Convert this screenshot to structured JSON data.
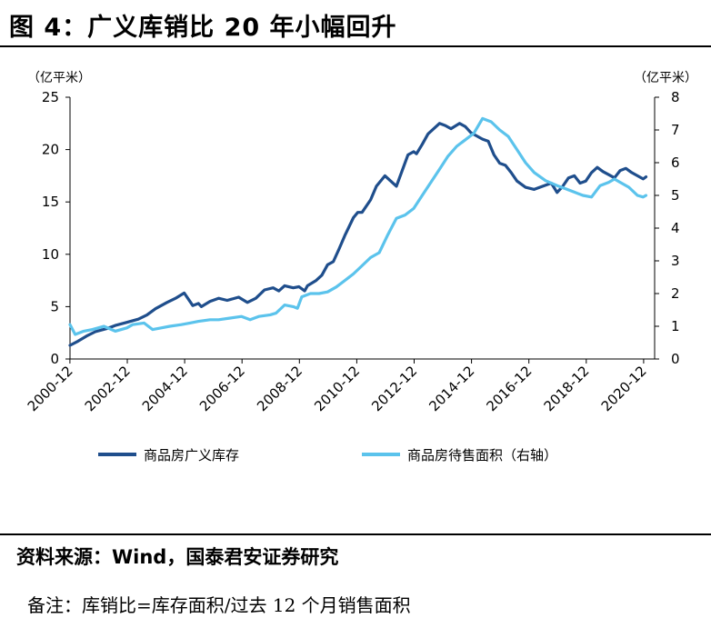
{
  "header": {
    "title": "图 4：广义库销比 20 年小幅回升"
  },
  "footer": {
    "source": "资料来源：Wind，国泰君安证券研究",
    "note": "备注：库销比=库存面积/过去 12 个月销售面积"
  },
  "chart_data": {
    "type": "line",
    "left_unit": "（亿平米）",
    "right_unit": "（亿平米）",
    "x_ticks": [
      "2000-12",
      "2002-12",
      "2004-12",
      "2006-12",
      "2008-12",
      "2010-12",
      "2012-12",
      "2014-12",
      "2016-12",
      "2018-12",
      "2020-12"
    ],
    "y_left_ticks": [
      0,
      5,
      10,
      15,
      20,
      25
    ],
    "y_right_ticks": [
      0,
      1,
      2,
      3,
      4,
      5,
      6,
      7,
      8
    ],
    "ylim_left": [
      0,
      25
    ],
    "ylim_right": [
      0,
      8
    ],
    "xlim": [
      2000.92,
      2021.3
    ],
    "grid": false,
    "legend_position": "bottom",
    "colors": {
      "series1": "#1f4e8c",
      "series2": "#5bc3ec"
    },
    "series": [
      {
        "name": "商品房广义库存",
        "axis": "left",
        "x": [
          2000.92,
          2001.2,
          2001.5,
          2001.8,
          2002.2,
          2002.5,
          2002.9,
          2003.3,
          2003.6,
          2003.9,
          2004.3,
          2004.6,
          2004.9,
          2005.2,
          2005.4,
          2005.5,
          2005.8,
          2006.1,
          2006.4,
          2006.8,
          2007.1,
          2007.4,
          2007.7,
          2008.0,
          2008.2,
          2008.4,
          2008.7,
          2008.9,
          2009.1,
          2009.2,
          2009.5,
          2009.7,
          2009.9,
          2010.1,
          2010.3,
          2010.5,
          2010.8,
          2010.95,
          2011.1,
          2011.4,
          2011.6,
          2011.9,
          2012.1,
          2012.3,
          2012.5,
          2012.7,
          2012.9,
          2013.0,
          2013.2,
          2013.4,
          2013.6,
          2013.8,
          2014.0,
          2014.2,
          2014.5,
          2014.7,
          2014.9,
          2015.1,
          2015.3,
          2015.5,
          2015.7,
          2015.9,
          2016.1,
          2016.3,
          2016.5,
          2016.8,
          2017.1,
          2017.4,
          2017.7,
          2017.9,
          2018.1,
          2018.3,
          2018.5,
          2018.7,
          2018.9,
          2019.1,
          2019.3,
          2019.5,
          2019.7,
          2019.9,
          2020.1,
          2020.3,
          2020.5,
          2020.7,
          2020.9,
          2021.0
        ],
        "values": [
          1.3,
          1.7,
          2.2,
          2.6,
          2.9,
          3.2,
          3.5,
          3.8,
          4.2,
          4.8,
          5.4,
          5.8,
          6.3,
          5.1,
          5.3,
          5.0,
          5.5,
          5.8,
          5.6,
          5.9,
          5.4,
          5.8,
          6.6,
          6.8,
          6.5,
          7.0,
          6.8,
          6.9,
          6.5,
          7.0,
          7.5,
          8.0,
          9.0,
          9.3,
          10.5,
          11.8,
          13.5,
          14.0,
          14.0,
          15.2,
          16.5,
          17.5,
          17.0,
          16.5,
          18.0,
          19.5,
          19.8,
          19.6,
          20.5,
          21.5,
          22.0,
          22.5,
          22.3,
          22.0,
          22.5,
          22.2,
          21.6,
          21.3,
          21.0,
          20.8,
          19.5,
          18.7,
          18.5,
          17.8,
          17.0,
          16.4,
          16.2,
          16.5,
          16.8,
          15.9,
          16.5,
          17.3,
          17.5,
          16.8,
          17.0,
          17.8,
          18.3,
          17.9,
          17.6,
          17.3,
          18.0,
          18.2,
          17.8,
          17.5,
          17.2,
          17.4
        ],
        "_note": ""
      },
      {
        "name": "商品房待售面积（右轴）",
        "axis": "right",
        "x": [
          2000.92,
          2001.1,
          2001.4,
          2001.7,
          2001.9,
          2002.1,
          2002.5,
          2002.9,
          2003.1,
          2003.5,
          2003.8,
          2004.1,
          2004.4,
          2004.8,
          2005.1,
          2005.4,
          2005.8,
          2006.1,
          2006.5,
          2006.9,
          2007.2,
          2007.5,
          2007.9,
          2008.1,
          2008.4,
          2008.7,
          2008.85,
          2009.0,
          2009.3,
          2009.6,
          2009.9,
          2010.2,
          2010.5,
          2010.8,
          2011.1,
          2011.4,
          2011.7,
          2012.0,
          2012.3,
          2012.6,
          2012.9,
          2013.2,
          2013.5,
          2013.8,
          2014.1,
          2014.4,
          2014.7,
          2015.0,
          2015.3,
          2015.6,
          2015.9,
          2016.2,
          2016.5,
          2016.8,
          2017.1,
          2017.5,
          2017.9,
          2018.2,
          2018.5,
          2018.8,
          2019.1,
          2019.4,
          2019.7,
          2019.9,
          2020.1,
          2020.4,
          2020.7,
          2020.9,
          2021.0
        ],
        "values": [
          1.05,
          0.75,
          0.85,
          0.9,
          0.95,
          1.0,
          0.85,
          0.95,
          1.05,
          1.1,
          0.9,
          0.95,
          1.0,
          1.05,
          1.1,
          1.15,
          1.2,
          1.2,
          1.25,
          1.3,
          1.2,
          1.3,
          1.35,
          1.4,
          1.65,
          1.6,
          1.55,
          1.9,
          2.0,
          2.0,
          2.05,
          2.2,
          2.4,
          2.6,
          2.85,
          3.1,
          3.25,
          3.8,
          4.3,
          4.4,
          4.6,
          5.0,
          5.4,
          5.8,
          6.2,
          6.5,
          6.7,
          6.9,
          7.35,
          7.25,
          7.0,
          6.8,
          6.4,
          6.0,
          5.7,
          5.45,
          5.3,
          5.2,
          5.1,
          5.0,
          4.95,
          5.3,
          5.4,
          5.5,
          5.4,
          5.25,
          5.0,
          4.95,
          5.0
        ],
        "_note": ""
      }
    ]
  }
}
